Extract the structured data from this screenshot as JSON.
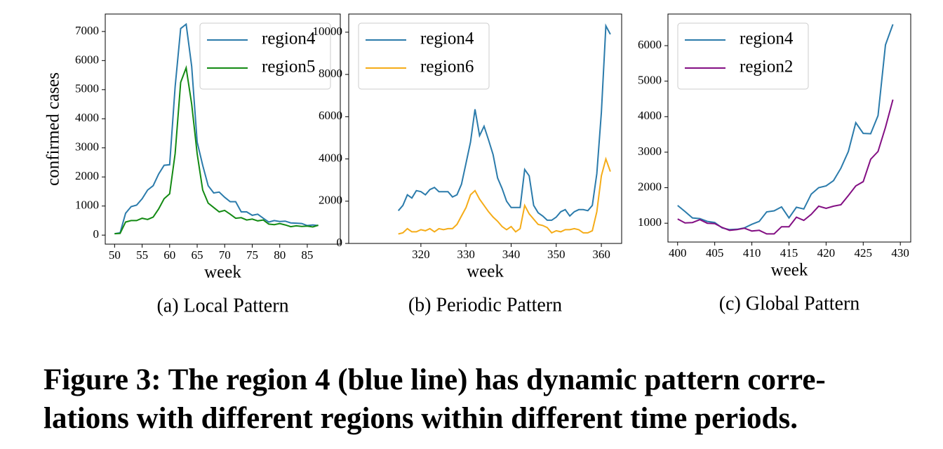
{
  "chart_data": [
    {
      "type": "line",
      "title": "(a) Local Pattern",
      "xlabel": "week",
      "ylabel": "confirmed cases",
      "legend": "upper right",
      "x": [
        50,
        51,
        52,
        53,
        54,
        55,
        56,
        57,
        58,
        59,
        60,
        61,
        62,
        63,
        64,
        65,
        66,
        67,
        68,
        69,
        70,
        71,
        72,
        73,
        74,
        75,
        76,
        77,
        78,
        79,
        80,
        81,
        82,
        83,
        84,
        85,
        86,
        87
      ],
      "xlim": [
        48.3,
        91
      ],
      "xticks": [
        50,
        55,
        60,
        65,
        70,
        75,
        80,
        85
      ],
      "ylim": [
        -310,
        7600
      ],
      "yticks": [
        0,
        1000,
        2000,
        3000,
        4000,
        5000,
        6000,
        7000
      ],
      "series": [
        {
          "name": "region4",
          "color": "#2b7bab",
          "values": [
            50,
            80,
            750,
            980,
            1030,
            1250,
            1550,
            1700,
            2100,
            2400,
            2420,
            5100,
            7100,
            7250,
            5800,
            3200,
            2400,
            1700,
            1450,
            1480,
            1300,
            1150,
            1150,
            800,
            800,
            680,
            720,
            580,
            450,
            500,
            470,
            480,
            420,
            410,
            400,
            330,
            350,
            330
          ]
        },
        {
          "name": "region5",
          "color": "#138a13",
          "values": [
            50,
            60,
            450,
            500,
            500,
            580,
            540,
            620,
            900,
            1250,
            1420,
            2800,
            5250,
            5750,
            4500,
            2800,
            1550,
            1100,
            950,
            800,
            850,
            720,
            580,
            600,
            520,
            550,
            490,
            520,
            380,
            360,
            400,
            350,
            290,
            320,
            300,
            310,
            280,
            340
          ]
        }
      ]
    },
    {
      "type": "line",
      "title": "(b) Periodic Pattern",
      "xlabel": "week",
      "legend": "upper left",
      "x": [
        315,
        316,
        317,
        318,
        319,
        320,
        321,
        322,
        323,
        324,
        325,
        326,
        327,
        328,
        329,
        330,
        331,
        332,
        333,
        334,
        335,
        336,
        337,
        338,
        339,
        340,
        341,
        342,
        343,
        344,
        345,
        346,
        347,
        348,
        349,
        350,
        351,
        352,
        353,
        354,
        355,
        356,
        357,
        358,
        359,
        360,
        361,
        362
      ],
      "xlim": [
        304,
        364.5
      ],
      "xticks": [
        320,
        330,
        340,
        350,
        360
      ],
      "ylim": [
        0,
        10860
      ],
      "yticks": [
        0,
        2000,
        4000,
        6000,
        8000,
        10000
      ],
      "series": [
        {
          "name": "region4",
          "color": "#2b7bab",
          "values": [
            1550,
            1800,
            2300,
            2150,
            2500,
            2450,
            2300,
            2550,
            2650,
            2450,
            2450,
            2450,
            2200,
            2300,
            2800,
            3800,
            4800,
            6350,
            5100,
            5550,
            4900,
            4200,
            3100,
            2600,
            2000,
            1700,
            1700,
            1700,
            3500,
            3200,
            1800,
            1450,
            1300,
            1100,
            1100,
            1250,
            1500,
            1600,
            1300,
            1500,
            1600,
            1600,
            1550,
            1800,
            3300,
            6200,
            10300,
            9900
          ]
        },
        {
          "name": "region6",
          "color": "#f5ac18",
          "values": [
            450,
            500,
            700,
            550,
            550,
            650,
            600,
            700,
            550,
            700,
            650,
            700,
            700,
            900,
            1300,
            1700,
            2300,
            2500,
            2100,
            1800,
            1500,
            1250,
            1050,
            800,
            650,
            800,
            550,
            700,
            1800,
            1400,
            1150,
            900,
            850,
            750,
            500,
            600,
            550,
            650,
            650,
            700,
            650,
            500,
            500,
            600,
            1500,
            3200,
            4000,
            3400
          ]
        }
      ]
    },
    {
      "type": "line",
      "title": "(c) Global Pattern",
      "xlabel": "week",
      "legend": "upper left",
      "x": [
        400,
        401,
        402,
        403,
        404,
        405,
        406,
        407,
        408,
        409,
        410,
        411,
        412,
        413,
        414,
        415,
        416,
        417,
        418,
        419,
        420,
        421,
        422,
        423,
        424,
        425,
        426,
        427,
        428,
        429
      ],
      "xlim": [
        398.7,
        431.4
      ],
      "xticks": [
        400,
        405,
        410,
        415,
        420,
        425,
        430
      ],
      "ylim": [
        470,
        6890
      ],
      "yticks": [
        1000,
        2000,
        3000,
        4000,
        5000,
        6000
      ],
      "series": [
        {
          "name": "region4",
          "color": "#2b7bab",
          "values": [
            1500,
            1330,
            1150,
            1130,
            1050,
            1020,
            870,
            820,
            830,
            870,
            970,
            1050,
            1320,
            1350,
            1460,
            1150,
            1450,
            1400,
            1820,
            2000,
            2050,
            2200,
            2550,
            3020,
            3830,
            3530,
            3520,
            4030,
            6020,
            6600
          ]
        },
        {
          "name": "region2",
          "color": "#830f83",
          "values": [
            1120,
            1010,
            1020,
            1100,
            1000,
            990,
            880,
            800,
            820,
            860,
            780,
            800,
            700,
            700,
            900,
            900,
            1170,
            1080,
            1250,
            1480,
            1420,
            1480,
            1520,
            1780,
            2050,
            2170,
            2800,
            3020,
            3700,
            4480
          ]
        }
      ]
    }
  ],
  "caption": {
    "lines": [
      "Figure 3: The region 4 (blue line) has dynamic pattern corre-",
      "lations with different regions within different time periods."
    ]
  }
}
